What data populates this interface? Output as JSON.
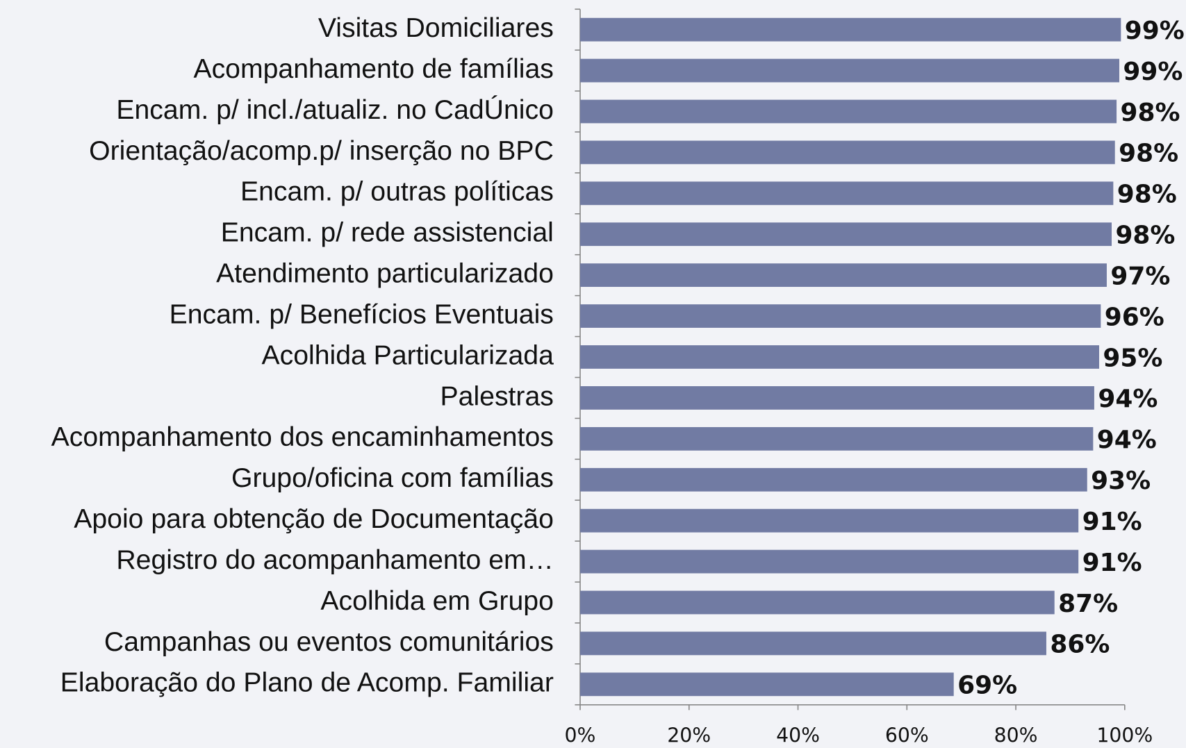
{
  "chart_data": {
    "type": "bar",
    "orientation": "horizontal",
    "categories": [
      "Visitas Domiciliares",
      "Acompanhamento de famílias",
      "Encam. p/ incl./atualiz. no CadÚnico",
      "Orientação/acomp.p/ inserção no BPC",
      "Encam. p/ outras políticas",
      "Encam. p/ rede assistencial",
      "Atendimento particularizado",
      "Encam. p/ Benefícios Eventuais",
      "Acolhida Particularizada",
      "Palestras",
      "Acompanhamento dos encaminhamentos",
      "Grupo/oficina com famílias",
      "Apoio para obtenção de Documentação",
      "Registro do acompanhamento em…",
      "Acolhida em Grupo",
      "Campanhas ou eventos comunitários",
      "Elaboração do Plano de Acomp. Familiar"
    ],
    "values": [
      99.3,
      99.0,
      98.5,
      98.2,
      97.9,
      97.6,
      96.7,
      95.6,
      95.3,
      94.4,
      94.2,
      93.1,
      91.5,
      91.5,
      87.1,
      85.6,
      68.6
    ],
    "value_labels": [
      "99%",
      "99%",
      "98%",
      "98%",
      "98%",
      "98%",
      "97%",
      "96%",
      "95%",
      "94%",
      "94%",
      "93%",
      "91%",
      "91%",
      "87%",
      "86%",
      "69%"
    ],
    "color": "#717ba3",
    "xlim": [
      0,
      100
    ],
    "xticks": [
      {
        "value": 0,
        "label": "0%"
      },
      {
        "value": 20,
        "label": "20%"
      },
      {
        "value": 40,
        "label": "40%"
      },
      {
        "value": 60,
        "label": "60%"
      },
      {
        "value": 80,
        "label": "80%"
      },
      {
        "value": 100,
        "label": "100%"
      }
    ]
  }
}
